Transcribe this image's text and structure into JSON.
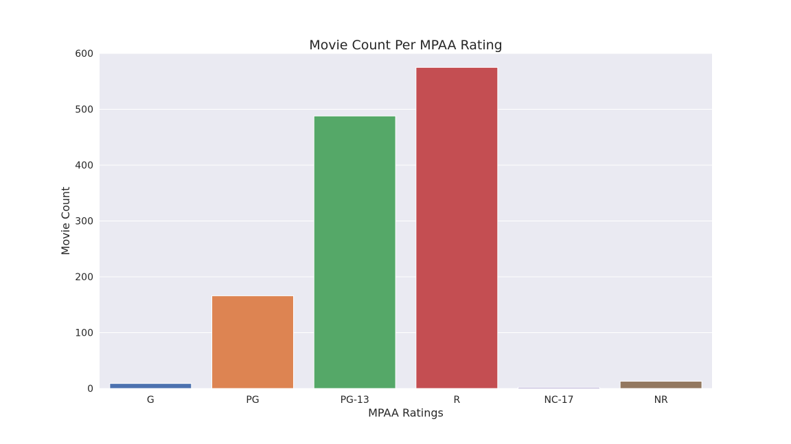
{
  "chart_data": {
    "type": "bar",
    "title": "Movie Count Per MPAA Rating",
    "xlabel": "MPAA Ratings",
    "ylabel": "Movie Count",
    "categories": [
      "G",
      "PG",
      "PG-13",
      "R",
      "NC-17",
      "NR"
    ],
    "values": [
      9,
      166,
      488,
      575,
      2,
      13
    ],
    "colors": [
      "#4C72B0",
      "#DD8452",
      "#55A868",
      "#C44E52",
      "#8172B3",
      "#937860"
    ],
    "ylim": [
      0,
      600
    ],
    "yticks": [
      0,
      100,
      200,
      300,
      400,
      500,
      600
    ],
    "grid": true,
    "background": "#EAEAF2",
    "legend": "none"
  }
}
